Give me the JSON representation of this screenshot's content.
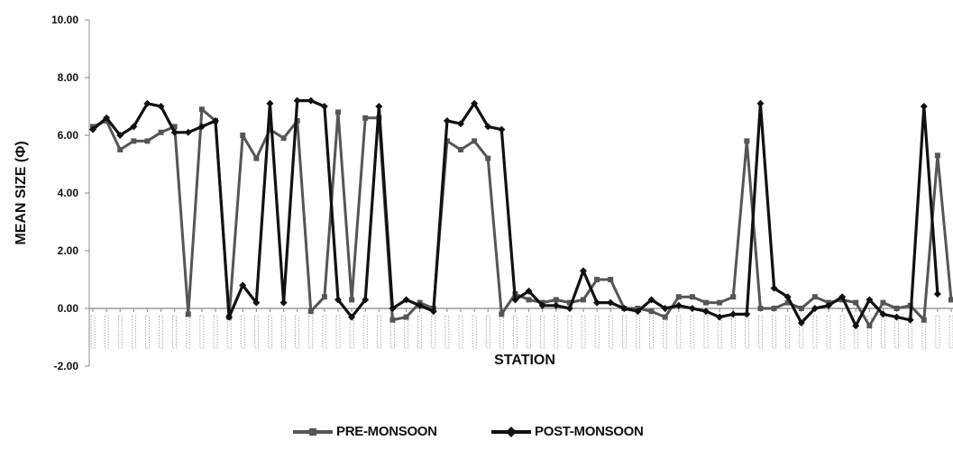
{
  "chart_data": {
    "type": "line",
    "xlabel": "STATION",
    "ylabel": "MEAN SIZE (Φ)",
    "ylim": [
      -2,
      10
    ],
    "yticks": [
      "10.00",
      "8.00",
      "6.00",
      "4.00",
      "2.00",
      "0.00",
      "-2.00"
    ],
    "grid": false,
    "legend_position": "bottom",
    "series": [
      {
        "name": "PRE-MONSOON",
        "color": "#555555",
        "values": [
          6.3,
          6.5,
          5.5,
          5.8,
          5.8,
          6.1,
          6.3,
          -0.2,
          6.9,
          6.5,
          -0.3,
          6.0,
          5.2,
          6.2,
          5.9,
          6.5,
          -0.1,
          0.4,
          6.8,
          0.3,
          6.6,
          6.6,
          -0.4,
          -0.3,
          0.2,
          0.0,
          5.8,
          5.5,
          5.8,
          5.2,
          -0.2,
          0.5,
          0.3,
          0.2,
          0.3,
          0.2,
          0.3,
          1.0,
          1.0,
          0.0,
          0.0,
          -0.1,
          -0.3,
          0.4,
          0.4,
          0.2,
          0.2,
          0.4,
          5.8,
          0.0,
          0.0,
          0.2,
          0.0,
          0.4,
          0.2,
          0.3,
          0.2,
          -0.6,
          0.2,
          0.0,
          0.1,
          -0.4,
          5.3,
          0.3
        ]
      },
      {
        "name": "POST-MONSOON",
        "color": "#111111",
        "values": [
          6.2,
          6.6,
          6.0,
          6.3,
          7.1,
          7.0,
          6.1,
          6.1,
          6.3,
          6.5,
          -0.3,
          0.8,
          0.2,
          7.1,
          0.2,
          7.2,
          7.2,
          7.0,
          0.3,
          -0.3,
          0.3,
          7.0,
          0.0,
          0.3,
          0.1,
          -0.1,
          6.5,
          6.4,
          7.1,
          6.3,
          6.2,
          0.3,
          0.6,
          0.1,
          0.1,
          0.0,
          1.3,
          0.2,
          0.2,
          0.0,
          -0.1,
          0.3,
          0.0,
          0.1,
          0.0,
          -0.1,
          -0.3,
          -0.2,
          -0.2,
          7.1,
          0.7,
          0.4,
          -0.5,
          0.0,
          0.1,
          0.4,
          -0.6,
          0.3,
          -0.2,
          -0.3,
          -0.4,
          7.0,
          0.5
        ]
      }
    ]
  }
}
